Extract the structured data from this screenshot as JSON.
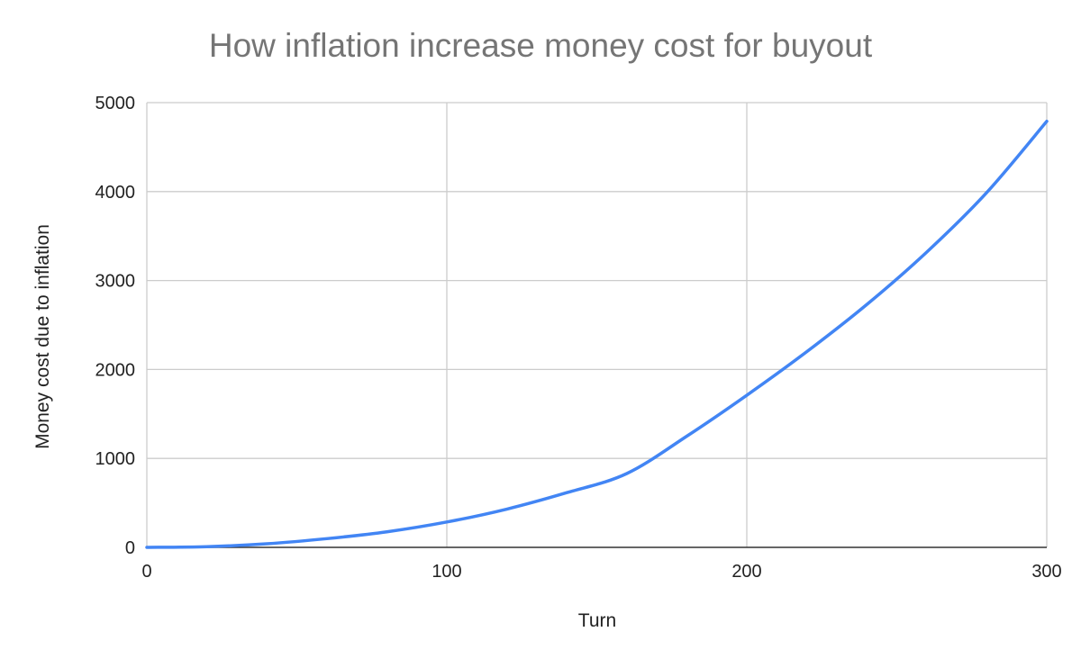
{
  "chart_data": {
    "type": "line",
    "title": "How inflation increase money cost for buyout",
    "xlabel": "Turn",
    "ylabel": "Money cost due to inflation",
    "xlim": [
      0,
      300
    ],
    "ylim": [
      0,
      5000
    ],
    "x_ticks": [
      0,
      100,
      200,
      300
    ],
    "y_ticks": [
      0,
      1000,
      2000,
      3000,
      4000,
      5000
    ],
    "grid": true,
    "series": [
      {
        "color": "#4285f4",
        "x": [
          0,
          20,
          40,
          60,
          80,
          100,
          120,
          140,
          160,
          180,
          200,
          220,
          240,
          260,
          280,
          300
        ],
        "y": [
          0,
          8,
          40,
          98,
          175,
          285,
          430,
          615,
          830,
          1250,
          1710,
          2200,
          2730,
          3320,
          3990,
          4790
        ]
      }
    ]
  }
}
